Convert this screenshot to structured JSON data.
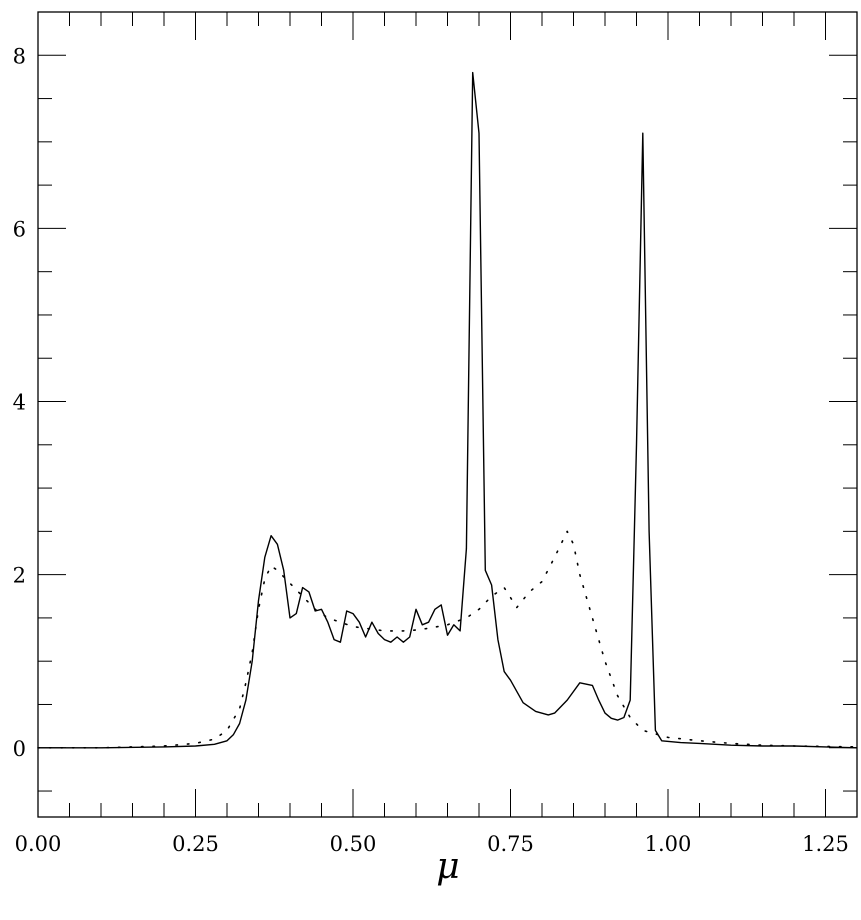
{
  "chart_data": {
    "type": "line",
    "title": "",
    "xlabel": "μ",
    "ylabel": "",
    "xlim": [
      0,
      1.3
    ],
    "ylim": [
      -0.8,
      8.5
    ],
    "x_ticks": [
      {
        "value": 0,
        "label": "0.00"
      },
      {
        "value": 0.25,
        "label": "0.25"
      },
      {
        "value": 0.5,
        "label": "0.50"
      },
      {
        "value": 0.75,
        "label": "0.75"
      },
      {
        "value": 1.0,
        "label": "1.00"
      },
      {
        "value": 1.25,
        "label": "1.25"
      }
    ],
    "y_ticks": [
      {
        "value": 0,
        "label": "0"
      },
      {
        "value": 2,
        "label": "2"
      },
      {
        "value": 4,
        "label": "4"
      },
      {
        "value": 6,
        "label": "6"
      },
      {
        "value": 8,
        "label": "8"
      }
    ],
    "grid": false,
    "legend": "none",
    "series": [
      {
        "style": "solid",
        "color": "#000000",
        "points": [
          [
            0.0,
            0.0
          ],
          [
            0.1,
            0.0
          ],
          [
            0.2,
            0.01
          ],
          [
            0.25,
            0.02
          ],
          [
            0.28,
            0.04
          ],
          [
            0.3,
            0.08
          ],
          [
            0.31,
            0.15
          ],
          [
            0.32,
            0.28
          ],
          [
            0.33,
            0.55
          ],
          [
            0.34,
            1.0
          ],
          [
            0.35,
            1.7
          ],
          [
            0.36,
            2.2
          ],
          [
            0.37,
            2.45
          ],
          [
            0.38,
            2.35
          ],
          [
            0.39,
            2.05
          ],
          [
            0.4,
            1.5
          ],
          [
            0.41,
            1.55
          ],
          [
            0.42,
            1.85
          ],
          [
            0.43,
            1.8
          ],
          [
            0.44,
            1.58
          ],
          [
            0.45,
            1.6
          ],
          [
            0.46,
            1.45
          ],
          [
            0.47,
            1.25
          ],
          [
            0.48,
            1.22
          ],
          [
            0.49,
            1.58
          ],
          [
            0.5,
            1.55
          ],
          [
            0.51,
            1.45
          ],
          [
            0.52,
            1.28
          ],
          [
            0.53,
            1.45
          ],
          [
            0.54,
            1.32
          ],
          [
            0.55,
            1.25
          ],
          [
            0.56,
            1.22
          ],
          [
            0.57,
            1.28
          ],
          [
            0.58,
            1.22
          ],
          [
            0.59,
            1.28
          ],
          [
            0.6,
            1.6
          ],
          [
            0.61,
            1.42
          ],
          [
            0.62,
            1.45
          ],
          [
            0.63,
            1.6
          ],
          [
            0.64,
            1.65
          ],
          [
            0.65,
            1.3
          ],
          [
            0.66,
            1.42
          ],
          [
            0.67,
            1.35
          ],
          [
            0.68,
            2.3
          ],
          [
            0.69,
            7.8
          ],
          [
            0.7,
            7.1
          ],
          [
            0.71,
            2.05
          ],
          [
            0.72,
            1.88
          ],
          [
            0.73,
            1.25
          ],
          [
            0.74,
            0.88
          ],
          [
            0.75,
            0.78
          ],
          [
            0.77,
            0.52
          ],
          [
            0.79,
            0.42
          ],
          [
            0.81,
            0.38
          ],
          [
            0.82,
            0.4
          ],
          [
            0.84,
            0.55
          ],
          [
            0.86,
            0.75
          ],
          [
            0.88,
            0.72
          ],
          [
            0.89,
            0.55
          ],
          [
            0.9,
            0.4
          ],
          [
            0.91,
            0.34
          ],
          [
            0.92,
            0.32
          ],
          [
            0.93,
            0.35
          ],
          [
            0.94,
            0.55
          ],
          [
            0.95,
            3.5
          ],
          [
            0.96,
            7.1
          ],
          [
            0.97,
            2.5
          ],
          [
            0.98,
            0.2
          ],
          [
            0.99,
            0.08
          ],
          [
            1.02,
            0.06
          ],
          [
            1.05,
            0.05
          ],
          [
            1.1,
            0.03
          ],
          [
            1.15,
            0.02
          ],
          [
            1.2,
            0.02
          ],
          [
            1.25,
            0.01
          ],
          [
            1.3,
            0.0
          ]
        ]
      },
      {
        "style": "dotted",
        "color": "#000000",
        "points": [
          [
            0.0,
            0.0
          ],
          [
            0.1,
            0.0
          ],
          [
            0.2,
            0.02
          ],
          [
            0.25,
            0.05
          ],
          [
            0.28,
            0.1
          ],
          [
            0.3,
            0.2
          ],
          [
            0.32,
            0.45
          ],
          [
            0.33,
            0.75
          ],
          [
            0.34,
            1.1
          ],
          [
            0.35,
            1.6
          ],
          [
            0.36,
            1.95
          ],
          [
            0.37,
            2.1
          ],
          [
            0.38,
            2.05
          ],
          [
            0.4,
            1.9
          ],
          [
            0.42,
            1.75
          ],
          [
            0.44,
            1.6
          ],
          [
            0.46,
            1.5
          ],
          [
            0.48,
            1.45
          ],
          [
            0.5,
            1.4
          ],
          [
            0.52,
            1.38
          ],
          [
            0.55,
            1.35
          ],
          [
            0.58,
            1.35
          ],
          [
            0.6,
            1.36
          ],
          [
            0.62,
            1.38
          ],
          [
            0.65,
            1.42
          ],
          [
            0.68,
            1.5
          ],
          [
            0.7,
            1.6
          ],
          [
            0.72,
            1.75
          ],
          [
            0.74,
            1.85
          ],
          [
            0.76,
            1.62
          ],
          [
            0.78,
            1.8
          ],
          [
            0.8,
            1.92
          ],
          [
            0.82,
            2.2
          ],
          [
            0.84,
            2.5
          ],
          [
            0.85,
            2.35
          ],
          [
            0.86,
            2.0
          ],
          [
            0.88,
            1.5
          ],
          [
            0.9,
            1.0
          ],
          [
            0.92,
            0.6
          ],
          [
            0.94,
            0.35
          ],
          [
            0.96,
            0.2
          ],
          [
            1.0,
            0.12
          ],
          [
            1.05,
            0.08
          ],
          [
            1.1,
            0.05
          ],
          [
            1.15,
            0.03
          ],
          [
            1.2,
            0.02
          ],
          [
            1.3,
            0.01
          ]
        ]
      }
    ]
  }
}
